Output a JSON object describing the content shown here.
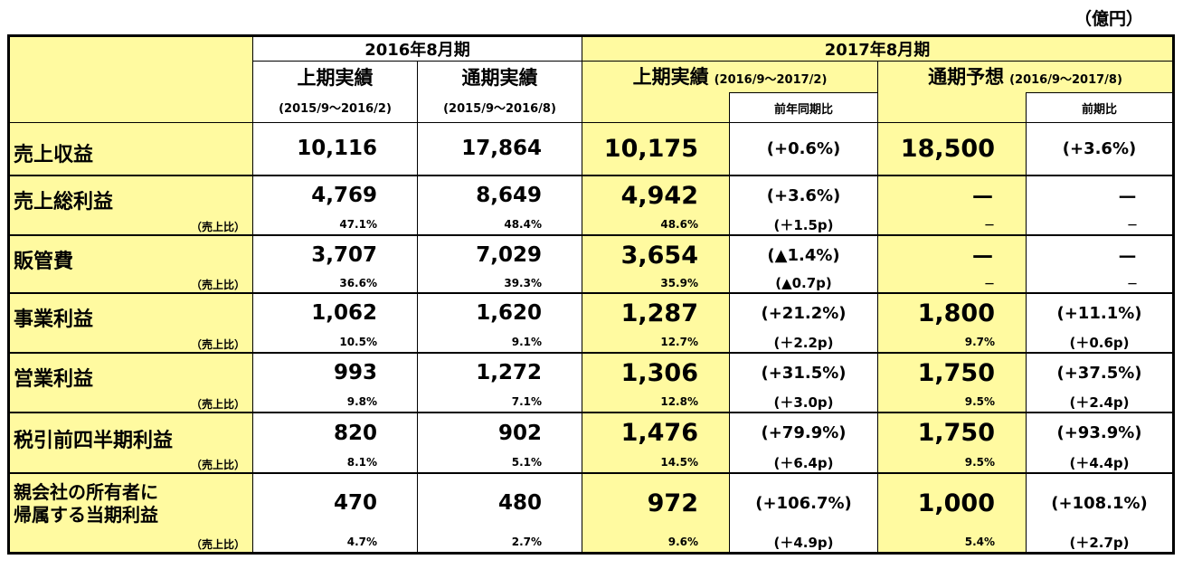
{
  "unit": "（億円）",
  "header": {
    "fy2016": "2016年8月期",
    "fy2017": "2017年8月期",
    "h1_actual": "上期実績",
    "full_actual": "通期実績",
    "h1_actual_2017": "上期実績",
    "h1_2017_period": "(2016/9～2017/2)",
    "full_forecast": "通期予想",
    "full_2017_period": "(2016/9～2017/8)",
    "h1_2016_period": "(2015/9～2016/2)",
    "full_2016_period": "(2015/9～2016/8)",
    "yoy": "前年同期比",
    "vs_prev": "前期比"
  },
  "ratio_label": "（売上比）",
  "rows": [
    {
      "label": "売上収益",
      "h1_2016": "10,116",
      "full_2016": "17,864",
      "h1_2017": "10,175",
      "h1_2017_chg": "(+0.6%)",
      "fc_2017": "18,500",
      "fc_2017_chg": "(+3.6%)"
    },
    {
      "label": "売上総利益",
      "h1_2016": "4,769",
      "full_2016": "8,649",
      "h1_2017": "4,942",
      "h1_2017_chg": "(+3.6%)",
      "fc_2017": "－",
      "fc_2017_chg": "－",
      "r_h1_2016": "47.1%",
      "r_full_2016": "48.4%",
      "r_h1_2017": "48.6%",
      "r_h1_2017_chg": "(＋1.5p)",
      "r_fc_2017": "－",
      "r_fc_2017_chg": "－"
    },
    {
      "label": "販管費",
      "h1_2016": "3,707",
      "full_2016": "7,029",
      "h1_2017": "3,654",
      "h1_2017_chg": "(▲1.4%)",
      "fc_2017": "－",
      "fc_2017_chg": "－",
      "r_h1_2016": "36.6%",
      "r_full_2016": "39.3%",
      "r_h1_2017": "35.9%",
      "r_h1_2017_chg": "(▲0.7p)",
      "r_fc_2017": "－",
      "r_fc_2017_chg": "－"
    },
    {
      "label": "事業利益",
      "h1_2016": "1,062",
      "full_2016": "1,620",
      "h1_2017": "1,287",
      "h1_2017_chg": "(+21.2%)",
      "fc_2017": "1,800",
      "fc_2017_chg": "(+11.1%)",
      "r_h1_2016": "10.5%",
      "r_full_2016": "9.1%",
      "r_h1_2017": "12.7%",
      "r_h1_2017_chg": "(＋2.2p)",
      "r_fc_2017": "9.7%",
      "r_fc_2017_chg": "(＋0.6p)"
    },
    {
      "label": "営業利益",
      "h1_2016": "993",
      "full_2016": "1,272",
      "h1_2017": "1,306",
      "h1_2017_chg": "(+31.5%)",
      "fc_2017": "1,750",
      "fc_2017_chg": "(+37.5%)",
      "r_h1_2016": "9.8%",
      "r_full_2016": "7.1%",
      "r_h1_2017": "12.8%",
      "r_h1_2017_chg": "(＋3.0p)",
      "r_fc_2017": "9.5%",
      "r_fc_2017_chg": "(＋2.4p)"
    },
    {
      "label": "税引前四半期利益",
      "h1_2016": "820",
      "full_2016": "902",
      "h1_2017": "1,476",
      "h1_2017_chg": "(+79.9%)",
      "fc_2017": "1,750",
      "fc_2017_chg": "(+93.9%)",
      "r_h1_2016": "8.1%",
      "r_full_2016": "5.1%",
      "r_h1_2017": "14.5%",
      "r_h1_2017_chg": "(＋6.4p)",
      "r_fc_2017": "9.5%",
      "r_fc_2017_chg": "(＋4.4p)"
    },
    {
      "label_line1": "親会社の所有者に",
      "label_line2": "帰属する当期利益",
      "h1_2016": "470",
      "full_2016": "480",
      "h1_2017": "972",
      "h1_2017_chg": "(+106.7%)",
      "fc_2017": "1,000",
      "fc_2017_chg": "(+108.1%)",
      "r_h1_2016": "4.7%",
      "r_full_2016": "2.7%",
      "r_h1_2017": "9.6%",
      "r_h1_2017_chg": "(＋4.9p)",
      "r_fc_2017": "5.4%",
      "r_fc_2017_chg": "(＋2.7p)"
    }
  ]
}
